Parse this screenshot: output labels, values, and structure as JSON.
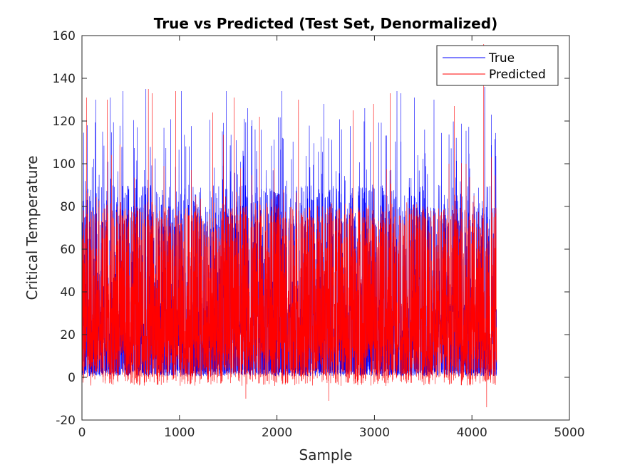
{
  "chart_data": {
    "type": "line",
    "title": "True vs Predicted (Test Set, Denormalized)",
    "xlabel": "Sample",
    "ylabel": "Critical Temperature",
    "xlim": [
      0,
      5000
    ],
    "ylim": [
      -20,
      160
    ],
    "xticks": [
      0,
      1000,
      2000,
      3000,
      4000,
      5000
    ],
    "yticks": [
      -20,
      0,
      20,
      40,
      60,
      80,
      100,
      120,
      140,
      160
    ],
    "grid": false,
    "legend_position": "top-right",
    "n_samples": 4253,
    "series": [
      {
        "name": "True",
        "color": "#0000ff",
        "baseline_range": [
          0.5,
          4
        ],
        "typical_peak": 90,
        "max_peak": 136,
        "notable_peaks": [
          [
            55,
            118
          ],
          [
            140,
            130
          ],
          [
            290,
            131
          ],
          [
            420,
            134
          ],
          [
            655,
            135
          ],
          [
            1020,
            134
          ],
          [
            1480,
            134
          ],
          [
            1700,
            126
          ],
          [
            2050,
            134
          ],
          [
            2480,
            128
          ],
          [
            2900,
            126
          ],
          [
            3230,
            134
          ],
          [
            3270,
            133
          ],
          [
            3410,
            131
          ],
          [
            3610,
            130
          ],
          [
            4130,
            136
          ],
          [
            4200,
            123
          ]
        ]
      },
      {
        "name": "Predicted",
        "color": "#ff0000",
        "baseline_range": [
          -4,
          10
        ],
        "typical_peak": 80,
        "max_peak": 156,
        "min_trough": -14,
        "notable_peaks": [
          [
            45,
            131
          ],
          [
            260,
            130
          ],
          [
            680,
            135
          ],
          [
            720,
            133
          ],
          [
            960,
            134
          ],
          [
            1340,
            124
          ],
          [
            1560,
            131
          ],
          [
            1820,
            122
          ],
          [
            2220,
            130
          ],
          [
            2780,
            125
          ],
          [
            2990,
            128
          ],
          [
            3160,
            133
          ],
          [
            3820,
            127
          ],
          [
            4120,
            156
          ]
        ],
        "notable_troughs": [
          [
            1680,
            -10
          ],
          [
            2530,
            -11
          ],
          [
            4150,
            -14
          ]
        ]
      }
    ]
  }
}
